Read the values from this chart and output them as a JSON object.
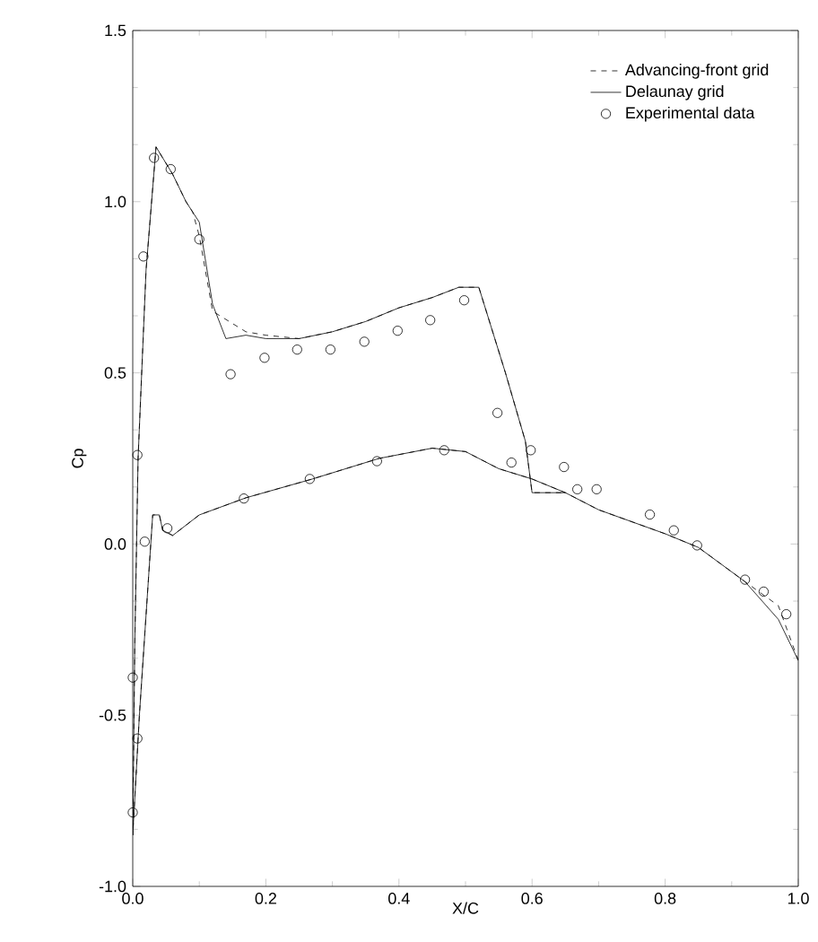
{
  "chart_data": {
    "type": "line",
    "xlabel": "X/C",
    "ylabel": "Cp",
    "xlim": [
      0,
      1
    ],
    "ylim": [
      -1,
      1.5
    ],
    "xticks": [
      {
        "value": 0,
        "label": "0.0"
      },
      0.2,
      0.4,
      0.6,
      0.8,
      {
        "value": 1,
        "label": "1.0"
      }
    ],
    "yticks": [
      {
        "value": -1,
        "label": "-1.0"
      },
      -0.5,
      {
        "value": 0,
        "label": "0.0"
      },
      0.5,
      {
        "value": 1,
        "label": "1.0"
      },
      1.5
    ],
    "legend": "top right",
    "grid": false,
    "series": [
      {
        "name": "Advancing-front grid",
        "line_style": "dashed",
        "marker": "none",
        "color": "#000000",
        "x": [
          1.0,
          0.97,
          0.92,
          0.85,
          0.8,
          0.7,
          0.65,
          0.6,
          0.55,
          0.5,
          0.45,
          0.37,
          0.27,
          0.17,
          0.1,
          0.06,
          0.045,
          0.04,
          0.03,
          0.01,
          0.0,
          0.003,
          0.008,
          0.02,
          0.035,
          0.06,
          0.08,
          0.09,
          0.1,
          0.12,
          0.17,
          0.2,
          0.25,
          0.3,
          0.35,
          0.4,
          0.45,
          0.49,
          0.52,
          0.56,
          0.59,
          0.6,
          0.65
        ],
        "values": [
          -0.34,
          -0.18,
          -0.11,
          -0.01,
          0.03,
          0.1,
          0.15,
          0.19,
          0.22,
          0.27,
          0.28,
          0.25,
          0.19,
          0.135,
          0.085,
          0.025,
          0.04,
          0.085,
          0.085,
          -0.5,
          -0.85,
          -0.3,
          0.25,
          0.8,
          1.16,
          1.08,
          1.0,
          0.97,
          0.9,
          0.68,
          0.62,
          0.61,
          0.6,
          0.62,
          0.65,
          0.69,
          0.72,
          0.75,
          0.75,
          0.5,
          0.3,
          0.15,
          0.15
        ]
      },
      {
        "name": "Delaunay grid",
        "line_style": "solid",
        "marker": "none",
        "color": "#000000",
        "x": [
          1.0,
          0.97,
          0.92,
          0.85,
          0.8,
          0.7,
          0.65,
          0.6,
          0.55,
          0.5,
          0.45,
          0.37,
          0.27,
          0.17,
          0.1,
          0.06,
          0.045,
          0.04,
          0.03,
          0.01,
          0.0,
          0.003,
          0.008,
          0.02,
          0.035,
          0.06,
          0.08,
          0.1,
          0.12,
          0.14,
          0.17,
          0.2,
          0.25,
          0.3,
          0.35,
          0.4,
          0.45,
          0.49,
          0.52,
          0.56,
          0.59,
          0.6,
          0.65
        ],
        "values": [
          -0.34,
          -0.22,
          -0.11,
          -0.01,
          0.03,
          0.1,
          0.15,
          0.19,
          0.22,
          0.27,
          0.28,
          0.25,
          0.19,
          0.135,
          0.085,
          0.025,
          0.04,
          0.085,
          0.085,
          -0.5,
          -0.85,
          -0.3,
          0.25,
          0.8,
          1.16,
          1.08,
          1.0,
          0.94,
          0.7,
          0.6,
          0.61,
          0.6,
          0.6,
          0.62,
          0.65,
          0.69,
          0.72,
          0.75,
          0.75,
          0.5,
          0.3,
          0.15,
          0.15
        ]
      },
      {
        "name": "Experimental data",
        "type": "scatter",
        "marker": "circle",
        "color": "#000000",
        "x": [
          0.0,
          0.0,
          0.007,
          0.007,
          0.016,
          0.018,
          0.032,
          0.052,
          0.057,
          0.1,
          0.147,
          0.167,
          0.198,
          0.247,
          0.266,
          0.297,
          0.348,
          0.367,
          0.398,
          0.447,
          0.468,
          0.498,
          0.548,
          0.569,
          0.598,
          0.648,
          0.668,
          0.697,
          0.777,
          0.813,
          0.848,
          0.92,
          0.948,
          0.982
        ],
        "values": [
          -0.784,
          -0.39,
          -0.568,
          0.26,
          0.84,
          0.007,
          1.128,
          0.046,
          1.095,
          0.89,
          0.496,
          0.133,
          0.544,
          0.568,
          0.19,
          0.568,
          0.591,
          0.242,
          0.623,
          0.654,
          0.274,
          0.712,
          0.383,
          0.238,
          0.274,
          0.225,
          0.16,
          0.16,
          0.086,
          0.04,
          -0.004,
          -0.104,
          -0.139,
          -0.205
        ]
      }
    ]
  }
}
